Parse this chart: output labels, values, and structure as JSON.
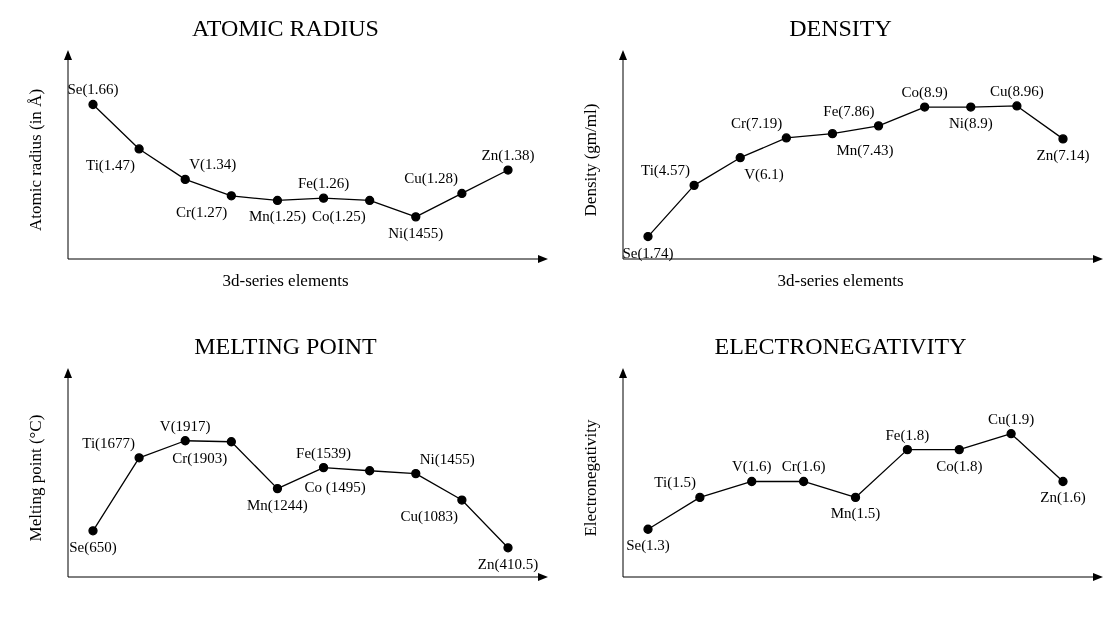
{
  "chart_data": [
    {
      "type": "line",
      "title": "ATOMIC RADIUS",
      "xlabel": "3d-series elements",
      "ylabel": "Atomic radius (in Å)",
      "ylim": [
        1.0,
        1.85
      ],
      "tick_labels": false,
      "marker": "circle",
      "line_style": "solid",
      "categories": [
        null,
        null,
        null,
        null,
        null,
        null,
        null,
        null,
        null,
        null
      ],
      "series": [
        {
          "color": "#000000",
          "values": [
            1.66,
            1.47,
            1.34,
            1.27,
            1.25,
            1.26,
            1.25,
            1.18,
            1.28,
            1.38
          ],
          "value_labels": [
            "Se(1.66)",
            "Ti(1.47)",
            "V(1.34)",
            "Cr(1.27)",
            "Mn(1.25)",
            "Fe(1.26)",
            "Co(1.25)",
            "Ni(1455)",
            "Cu(1.28)",
            "Zn(1.38)"
          ]
        }
      ]
    },
    {
      "type": "line",
      "title": "DENSITY",
      "xlabel": "3d-series elements",
      "ylabel": "Density (gm/ml)",
      "ylim": [
        0.5,
        11.5
      ],
      "tick_labels": false,
      "marker": "circle",
      "line_style": "solid",
      "categories": [
        null,
        null,
        null,
        null,
        null,
        null,
        null,
        null,
        null,
        null
      ],
      "series": [
        {
          "color": "#000000",
          "values": [
            1.74,
            4.57,
            6.1,
            7.19,
            7.43,
            7.86,
            8.9,
            8.9,
            8.96,
            7.14
          ],
          "value_labels": [
            "Se(1.74)",
            "Ti(4.57)",
            "V(6.1)",
            "Cr(7.19)",
            "Mn(7.43)",
            "Fe(7.86)",
            "Co(8.9)",
            "Ni(8.9)",
            "Cu(8.96)",
            "Zn(7.14)"
          ]
        }
      ]
    },
    {
      "type": "line",
      "title": "MELTING POINT",
      "ylabel": "Melting point (°C)",
      "ylim": [
        0,
        2800
      ],
      "tick_labels": false,
      "marker": "circle",
      "line_style": "solid",
      "categories": [
        null,
        null,
        null,
        null,
        null,
        null,
        null,
        null,
        null,
        null
      ],
      "series": [
        {
          "color": "#000000",
          "values": [
            650,
            1677,
            1917,
            1903,
            1244,
            1539,
            1495,
            1455,
            1083,
            410.5
          ],
          "value_labels": [
            "Se(650)",
            "Ti(1677)",
            "V(1917)",
            "Cr(1903)",
            "Mn(1244)",
            "Fe(1539)",
            "Co (1495)",
            "Ni(1455)",
            "Cu(1083)",
            "Zn(410.5)"
          ]
        }
      ]
    },
    {
      "type": "line",
      "title": "ELECTRONEGATIVITY",
      "ylabel": "Electronegativity",
      "ylim": [
        1.0,
        2.25
      ],
      "tick_labels": false,
      "marker": "circle",
      "line_style": "solid",
      "categories": [
        null,
        null,
        null,
        null,
        null,
        null,
        null,
        null,
        null
      ],
      "series": [
        {
          "color": "#000000",
          "values": [
            1.3,
            1.5,
            1.6,
            1.6,
            1.5,
            1.8,
            1.8,
            1.9,
            1.6
          ],
          "value_labels": [
            "Se(1.3)",
            "Ti(1.5)",
            "V(1.6)",
            "Cr(1.6)",
            "Mn(1.5)",
            "Fe(1.8)",
            "Co(1.8)",
            "Cu(1.9)",
            "Zn(1.6)"
          ]
        }
      ]
    }
  ]
}
